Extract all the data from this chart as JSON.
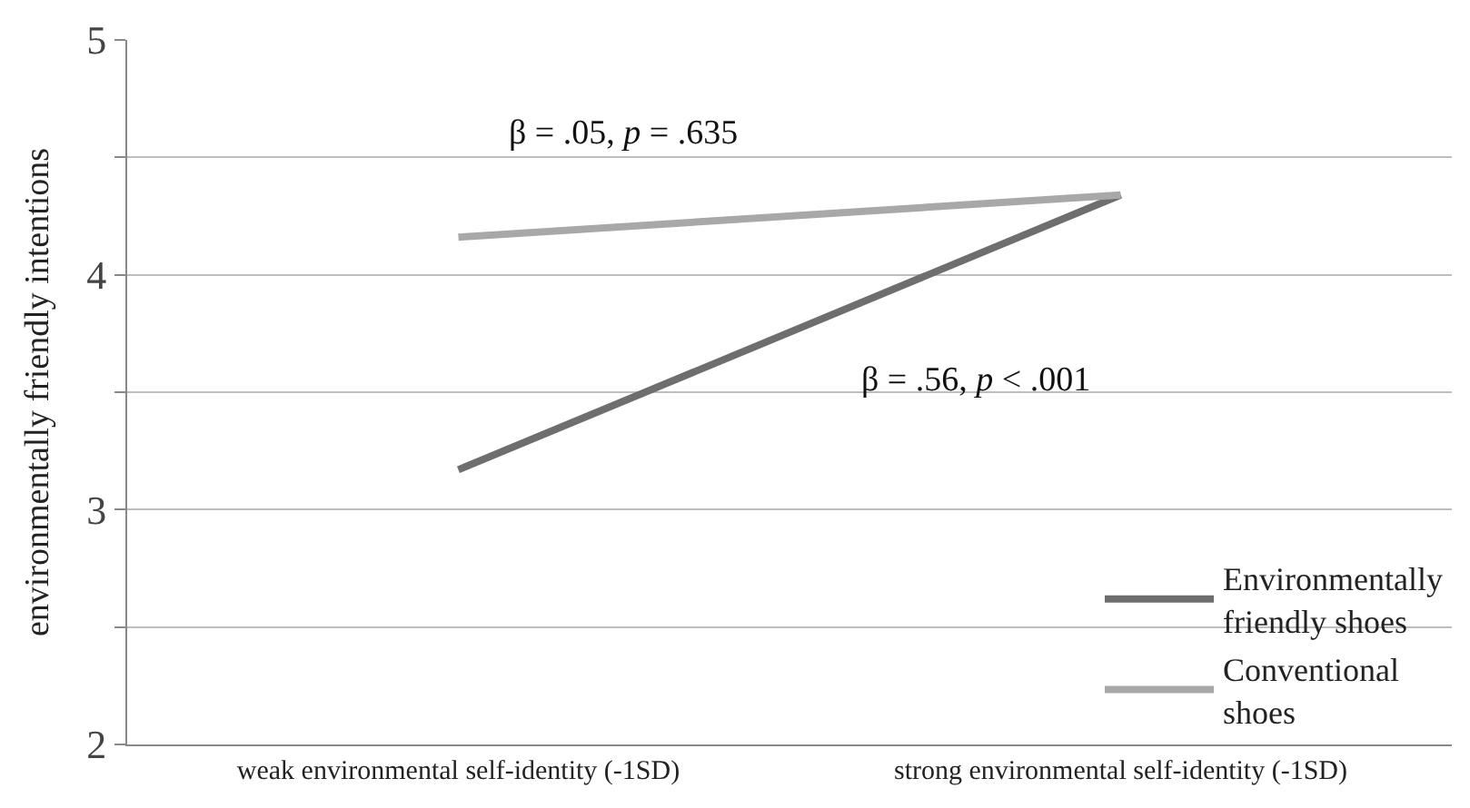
{
  "chart_data": {
    "type": "line",
    "ylabel": "environmentally friendly intentions",
    "categories": [
      "weak environmental self-identity (-1SD)",
      "strong environmental self-identity (-1SD)"
    ],
    "series": [
      {
        "name": "Environmentally friendly shoes",
        "color": "#6e6e6e",
        "values": [
          3.17,
          4.34
        ]
      },
      {
        "name": "Conventional shoes",
        "color": "#a8a8a8",
        "values": [
          4.16,
          4.34
        ]
      }
    ],
    "ylim": [
      2,
      5
    ],
    "yticks": [
      2,
      {
        "value": 2.5,
        "label": null
      },
      3,
      {
        "value": 3.5,
        "label": null
      },
      4,
      {
        "value": 4.5,
        "label": null
      },
      5
    ],
    "annotations": [
      "β = .05, p = .635",
      "β = .56, p < .001"
    ],
    "grid": "y",
    "legend": "bottom right",
    "marker": "none",
    "line_style": "solid"
  }
}
